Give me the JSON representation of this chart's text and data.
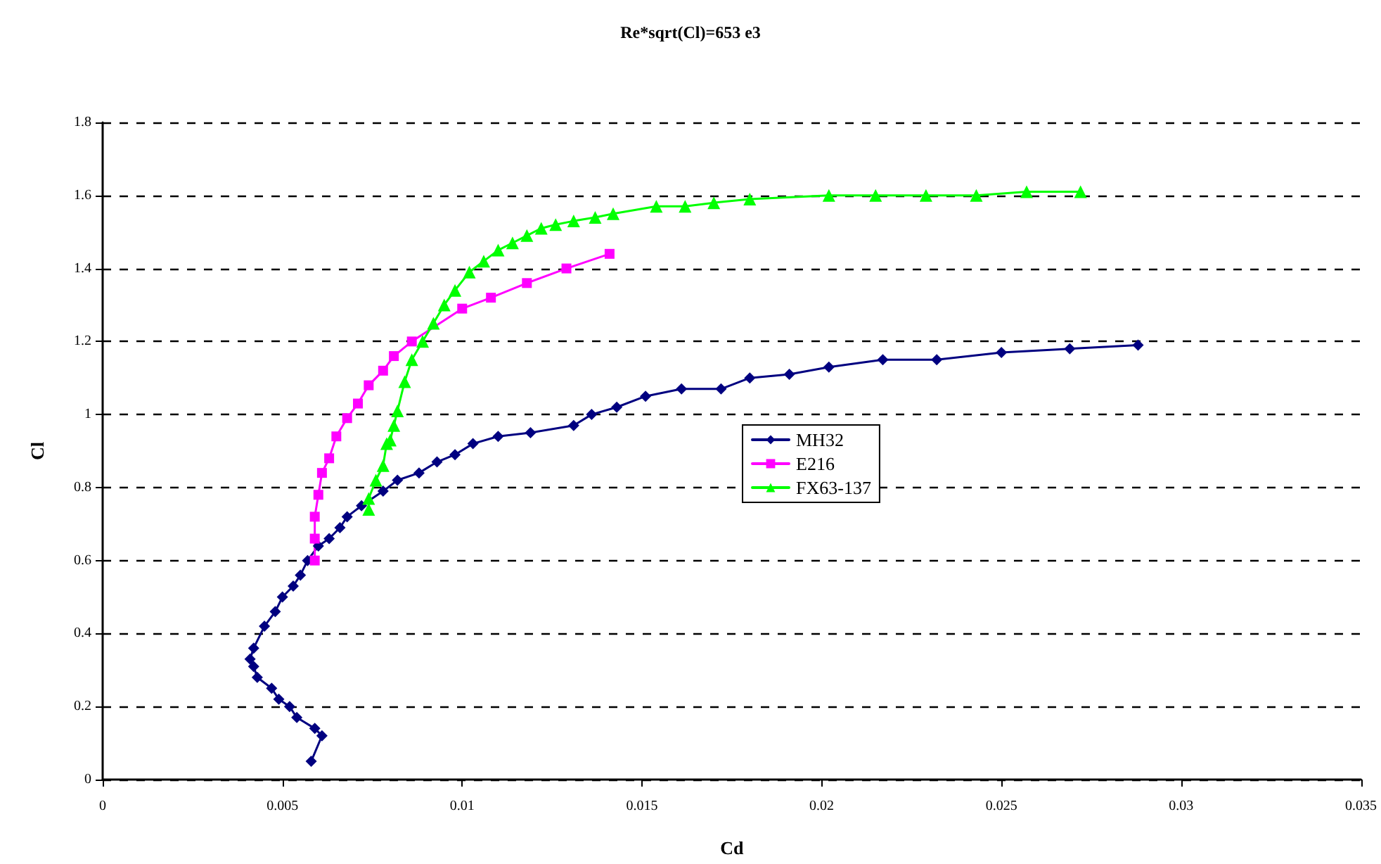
{
  "chart_data": {
    "type": "line",
    "title": "Re*sqrt(Cl)=653 e3",
    "xlabel": "Cd",
    "ylabel": "Cl",
    "xlim": [
      0,
      0.035
    ],
    "xticks": [
      0,
      0.005,
      0.01,
      0.015,
      0.02,
      0.025,
      0.03,
      0.035
    ],
    "ylim": [
      0,
      1.8
    ],
    "yticks": [
      0,
      0.2,
      0.4,
      0.6,
      0.8,
      1,
      1.2,
      1.4,
      1.6,
      1.8
    ],
    "grid": "y",
    "legend": "center",
    "line_style": "solid",
    "series": [
      {
        "name": "MH32",
        "color": "#000080",
        "marker": "diamond",
        "x": [
          0.0058,
          0.0061,
          0.0059,
          0.0054,
          0.0052,
          0.0049,
          0.0047,
          0.0043,
          0.0042,
          0.0041,
          0.0042,
          0.0045,
          0.0048,
          0.005,
          0.0053,
          0.0055,
          0.0057,
          0.006,
          0.0063,
          0.0066,
          0.0068,
          0.0072,
          0.0078,
          0.0082,
          0.0088,
          0.0093,
          0.0098,
          0.0103,
          0.011,
          0.0119,
          0.0131,
          0.0136,
          0.0143,
          0.0151,
          0.0161,
          0.0172,
          0.018,
          0.0191,
          0.0202,
          0.0217,
          0.0232,
          0.025,
          0.0269,
          0.0288
        ],
        "values": [
          0.05,
          0.12,
          0.14,
          0.17,
          0.2,
          0.22,
          0.25,
          0.28,
          0.31,
          0.33,
          0.36,
          0.42,
          0.46,
          0.5,
          0.53,
          0.56,
          0.6,
          0.64,
          0.66,
          0.69,
          0.72,
          0.75,
          0.79,
          0.82,
          0.84,
          0.87,
          0.89,
          0.92,
          0.94,
          0.95,
          0.97,
          1.0,
          1.02,
          1.05,
          1.07,
          1.07,
          1.1,
          1.11,
          1.13,
          1.15,
          1.15,
          1.17,
          1.18,
          1.19
        ]
      },
      {
        "name": "E216",
        "color": "#ff00ff",
        "marker": "square",
        "x": [
          0.0059,
          0.0059,
          0.0059,
          0.006,
          0.0061,
          0.0063,
          0.0065,
          0.0068,
          0.0071,
          0.0074,
          0.0078,
          0.0081,
          0.0086,
          0.01,
          0.0108,
          0.0118,
          0.0129,
          0.0141
        ],
        "values": [
          0.6,
          0.66,
          0.72,
          0.78,
          0.84,
          0.88,
          0.94,
          0.99,
          1.03,
          1.08,
          1.12,
          1.16,
          1.2,
          1.29,
          1.32,
          1.36,
          1.4,
          1.44
        ]
      },
      {
        "name": "FX63-137",
        "color": "#00ff00",
        "marker": "triangle",
        "x": [
          0.0074,
          0.0074,
          0.0076,
          0.0078,
          0.0079,
          0.008,
          0.0081,
          0.0082,
          0.0084,
          0.0086,
          0.0089,
          0.0092,
          0.0095,
          0.0098,
          0.0102,
          0.0106,
          0.011,
          0.0114,
          0.0118,
          0.0122,
          0.0126,
          0.0131,
          0.0137,
          0.0142,
          0.0154,
          0.0162,
          0.017,
          0.018,
          0.0202,
          0.0215,
          0.0229,
          0.0243,
          0.0257,
          0.0272
        ],
        "values": [
          0.74,
          0.77,
          0.82,
          0.86,
          0.92,
          0.93,
          0.97,
          1.01,
          1.09,
          1.15,
          1.2,
          1.25,
          1.3,
          1.34,
          1.39,
          1.42,
          1.45,
          1.47,
          1.49,
          1.51,
          1.52,
          1.53,
          1.54,
          1.55,
          1.57,
          1.57,
          1.58,
          1.59,
          1.6,
          1.6,
          1.6,
          1.6,
          1.61,
          1.61
        ]
      }
    ]
  }
}
